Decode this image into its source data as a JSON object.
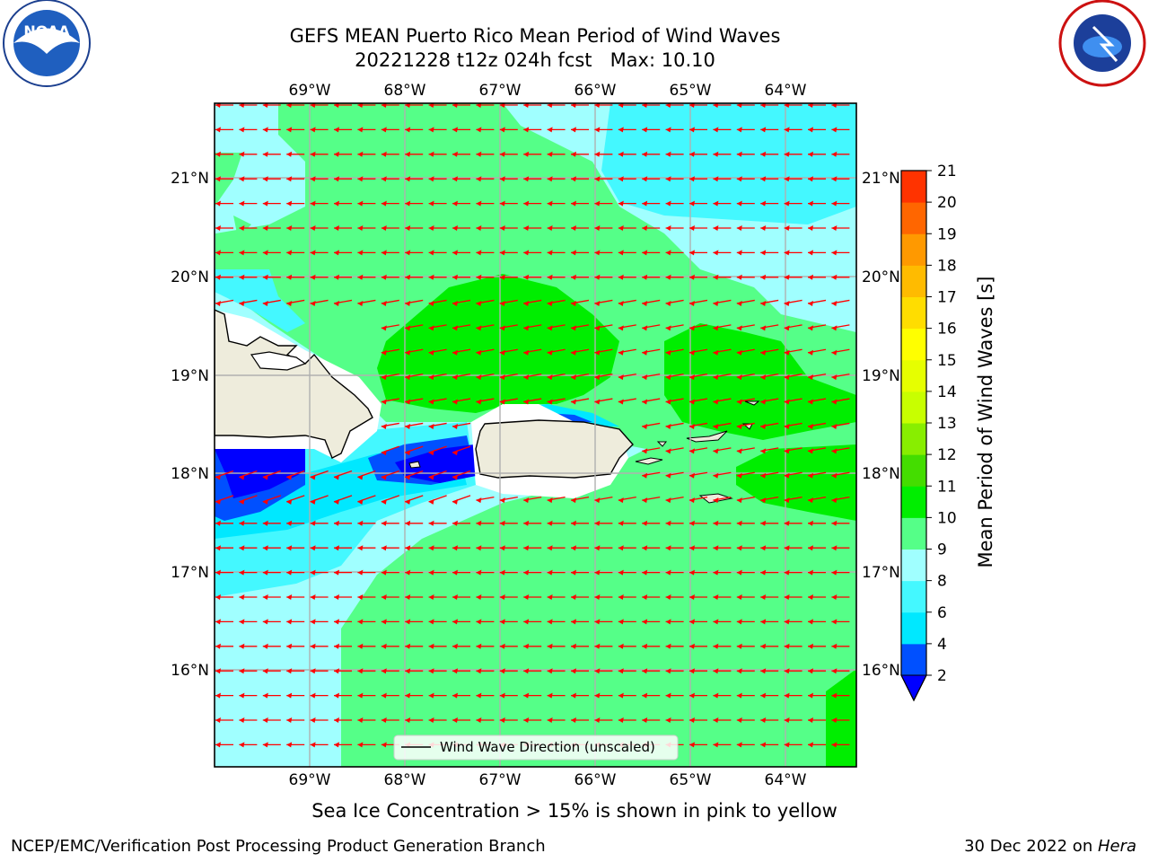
{
  "title": {
    "line1": "GEFS MEAN Puerto Rico Mean Period of Wind Waves",
    "line2": "20221228 t12z 024h fcst   Max: 10.10"
  },
  "logos": {
    "left": {
      "name": "noaa-logo",
      "text": "NOAA"
    },
    "right": {
      "name": "nws-logo",
      "text": "NATIONAL WEATHER SERVICE"
    }
  },
  "map": {
    "lon_labels": [
      "69°W",
      "68°W",
      "67°W",
      "66°W",
      "65°W",
      "64°W"
    ],
    "lat_labels": [
      "21°N",
      "20°N",
      "19°N",
      "18°N",
      "17°N",
      "16°N"
    ],
    "legend": "Wind Wave Direction (unscaled)",
    "arrow_color": "#ff0000",
    "land_color": "#eeecdc"
  },
  "colorbar": {
    "label": "Mean Period of Wind Waves [s]",
    "ticks": [
      "2",
      "4",
      "6",
      "8",
      "9",
      "10",
      "11",
      "12",
      "13",
      "14",
      "15",
      "16",
      "17",
      "18",
      "19",
      "20",
      "21"
    ],
    "colors": [
      "#0050ff",
      "#00e8ff",
      "#44f8ff",
      "#a0ffff",
      "#55ff88",
      "#00ee00",
      "#44dd00",
      "#88ee00",
      "#c8ff00",
      "#e6ff00",
      "#ffff00",
      "#ffdd00",
      "#ffbb00",
      "#ff9900",
      "#ff6600",
      "#ff3300",
      "#ff0000"
    ],
    "extend_color": "#0000ff"
  },
  "footer": {
    "note": "Sea Ice Concentration > 15% is shown in pink to yellow",
    "left": "NCEP/EMC/Verification Post Processing Product Generation Branch",
    "date": "30 Dec 2022 on ",
    "host": "Hera"
  }
}
